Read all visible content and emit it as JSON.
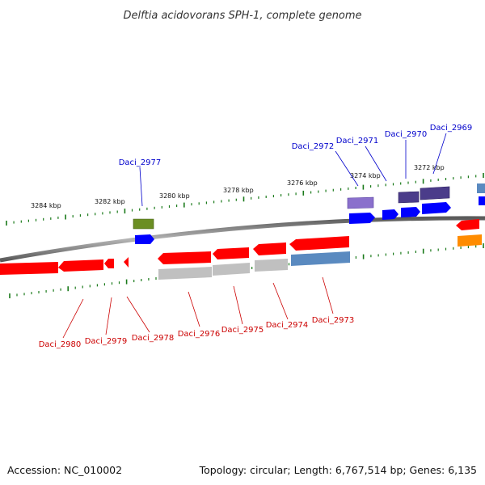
{
  "title": "Delftia acidovorans SPH-1, complete genome",
  "footer": {
    "accession": "Accession: NC_010002",
    "summary": "Topology: circular; Length: 6,767,514 bp; Genes: 6,135"
  },
  "colors": {
    "forward_label": "#0000cc",
    "reverse_label": "#cc0000",
    "tick": "#1a7a1a",
    "backbone": "#8a8a8a"
  },
  "scale": [
    "3284 kbp",
    "3282 kbp",
    "3280 kbp",
    "3278 kbp",
    "3276 kbp",
    "3274 kbp",
    "3272 kbp"
  ],
  "genes_forward": [
    "Daci_2977",
    "Daci_2972",
    "Daci_2971",
    "Daci_2970",
    "Daci_2969"
  ],
  "genes_reverse": [
    "Daci_2980",
    "Daci_2979",
    "Daci_2978",
    "Daci_2976",
    "Daci_2975",
    "Daci_2974",
    "Daci_2973"
  ]
}
